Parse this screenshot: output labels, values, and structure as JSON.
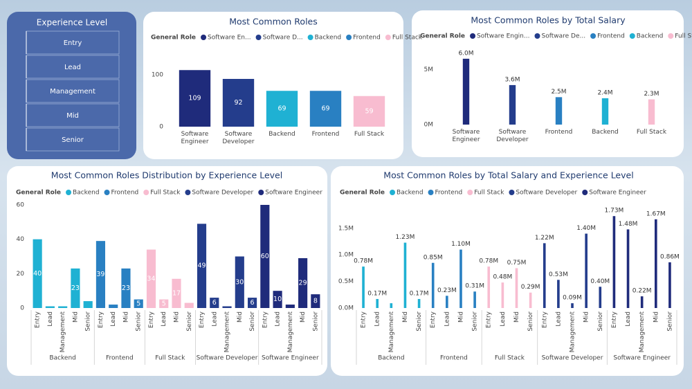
{
  "slicer": {
    "title": "Experience Level",
    "items": [
      "Entry",
      "Lead",
      "Management",
      "Mid",
      "Senior"
    ]
  },
  "chart_data": [
    {
      "type": "bar",
      "title": "Most Common Roles",
      "legend_title": "General Role",
      "legend": [
        "Software En...",
        "Software D...",
        "Backend",
        "Frontend",
        "Full Stack"
      ],
      "categories": [
        "Software Engineer",
        "Software Developer",
        "Backend",
        "Frontend",
        "Full Stack"
      ],
      "values": [
        109,
        92,
        69,
        69,
        59
      ],
      "colors": [
        "#1f2b7b",
        "#243d8c",
        "#1fb1d3",
        "#2980c2",
        "#f8bcd0"
      ],
      "label_position": "inside",
      "ylim": [
        0,
        120
      ],
      "yticks": [
        0,
        100
      ]
    },
    {
      "type": "bar",
      "title": "Most Common Roles by Total Salary",
      "legend_title": "General Role",
      "legend": [
        "Software Engin...",
        "Software De...",
        "Frontend",
        "Backend",
        "Full Stack"
      ],
      "categories": [
        "Software Engineer",
        "Software Developer",
        "Frontend",
        "Backend",
        "Full Stack"
      ],
      "values": [
        6000000,
        3600000,
        2500000,
        2400000,
        2300000
      ],
      "value_labels": [
        "6.0M",
        "3.6M",
        "2.5M",
        "2.4M",
        "2.3M"
      ],
      "colors": [
        "#1f2b7b",
        "#243d8c",
        "#2980c2",
        "#1fb1d3",
        "#f8bcd0"
      ],
      "label_position": "above",
      "ylim": [
        0,
        7000000
      ],
      "yticks": [
        {
          "value": 0,
          "label": "0M"
        },
        {
          "value": 5000000,
          "label": "5M"
        }
      ]
    },
    {
      "type": "grouped_bar",
      "title": "Most Common Roles Distribution by Experience Level",
      "legend_title": "General Role",
      "series": [
        {
          "name": "Backend",
          "color": "#1fb1d3",
          "categories": [
            "Entry",
            "Lead",
            "Management",
            "Mid",
            "Senior"
          ],
          "values": [
            40,
            1,
            1,
            23,
            4
          ]
        },
        {
          "name": "Frontend",
          "color": "#2980c2",
          "categories": [
            "Entry",
            "Lead",
            "Mid",
            "Senior"
          ],
          "values": [
            39,
            2,
            23,
            5
          ]
        },
        {
          "name": "Full Stack",
          "color": "#f8bcd0",
          "categories": [
            "Entry",
            "Lead",
            "Mid",
            "Senior"
          ],
          "values": [
            34,
            5,
            17,
            3
          ]
        },
        {
          "name": "Software Developer",
          "color": "#243d8c",
          "categories": [
            "Entry",
            "Lead",
            "Management",
            "Mid",
            "Senior"
          ],
          "values": [
            49,
            6,
            1,
            30,
            6
          ]
        },
        {
          "name": "Software Engineer",
          "color": "#1f2b7b",
          "categories": [
            "Entry",
            "Lead",
            "Management",
            "Mid",
            "Senior"
          ],
          "values": [
            60,
            10,
            2,
            29,
            8
          ]
        }
      ],
      "label_position": "inside",
      "ylim": [
        0,
        60
      ],
      "yticks": [
        0,
        20,
        40,
        60
      ]
    },
    {
      "type": "grouped_bar",
      "title": "Most Common Roles by Total Salary and Experience Level",
      "legend_title": "General Role",
      "series": [
        {
          "name": "Backend",
          "color": "#1fb1d3",
          "categories": [
            "Entry",
            "Lead",
            "Management",
            "Mid",
            "Senior"
          ],
          "values": [
            780000,
            170000,
            90000,
            1230000,
            170000
          ],
          "value_labels": [
            "0.78M",
            "0.17M",
            null,
            "1.23M",
            "0.17M"
          ]
        },
        {
          "name": "Frontend",
          "color": "#2980c2",
          "categories": [
            "Entry",
            "Lead",
            "Mid",
            "Senior"
          ],
          "values": [
            850000,
            230000,
            1100000,
            310000
          ],
          "value_labels": [
            "0.85M",
            "0.23M",
            "1.10M",
            "0.31M"
          ]
        },
        {
          "name": "Full Stack",
          "color": "#f8bcd0",
          "categories": [
            "Entry",
            "Lead",
            "Mid",
            "Senior"
          ],
          "values": [
            780000,
            480000,
            750000,
            290000
          ],
          "value_labels": [
            "0.78M",
            "0.48M",
            "0.75M",
            "0.29M"
          ]
        },
        {
          "name": "Software Developer",
          "color": "#243d8c",
          "categories": [
            "Entry",
            "Lead",
            "Management",
            "Mid",
            "Senior"
          ],
          "values": [
            1220000,
            530000,
            90000,
            1400000,
            400000
          ],
          "value_labels": [
            "1.22M",
            "0.53M",
            "0.09M",
            "1.40M",
            "0.40M"
          ]
        },
        {
          "name": "Software Engineer",
          "color": "#1f2b7b",
          "categories": [
            "Entry",
            "Lead",
            "Management",
            "Mid",
            "Senior"
          ],
          "values": [
            1730000,
            1480000,
            220000,
            1670000,
            860000
          ],
          "value_labels": [
            "1.73M",
            "1.48M",
            "0.22M",
            "1.67M",
            "0.86M"
          ]
        }
      ],
      "label_position": "above",
      "ylim": [
        0,
        1850000
      ],
      "yticks": [
        {
          "value": 0,
          "label": "0.0M"
        },
        {
          "value": 500000,
          "label": "0.5M"
        },
        {
          "value": 1000000,
          "label": "1.0M"
        },
        {
          "value": 1500000,
          "label": "1.5M"
        }
      ]
    }
  ]
}
